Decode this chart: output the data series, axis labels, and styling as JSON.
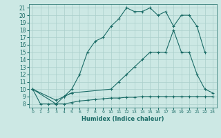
{
  "xlabel": "Humidex (Indice chaleur)",
  "bg_color": "#cce8e4",
  "grid_color": "#aacfcb",
  "line_color": "#1a6b66",
  "xlim": [
    -0.5,
    23.5
  ],
  "ylim": [
    7.5,
    21.5
  ],
  "xticks": [
    0,
    1,
    2,
    3,
    4,
    5,
    6,
    7,
    8,
    9,
    10,
    11,
    12,
    13,
    14,
    15,
    16,
    17,
    18,
    19,
    20,
    21,
    22,
    23
  ],
  "yticks": [
    8,
    9,
    10,
    11,
    12,
    13,
    14,
    15,
    16,
    17,
    18,
    19,
    20,
    21
  ],
  "line1_x": [
    0,
    1,
    2,
    3,
    4,
    5,
    6,
    7,
    8,
    9,
    10,
    11,
    12,
    13,
    14,
    15,
    16,
    17,
    18,
    19,
    20,
    21,
    22
  ],
  "line1_y": [
    10,
    8,
    8,
    8,
    9,
    10,
    12,
    15,
    16.5,
    17,
    18.5,
    19.5,
    21,
    20.5,
    20.5,
    21,
    20,
    20.5,
    18.5,
    20,
    20,
    18.5,
    15
  ],
  "line2_x": [
    0,
    3,
    4,
    5,
    10,
    11,
    12,
    13,
    14,
    15,
    16,
    17,
    18,
    19,
    20,
    21,
    22,
    23
  ],
  "line2_y": [
    10,
    8.5,
    9,
    9.5,
    10,
    11,
    12,
    13,
    14,
    15,
    15,
    15,
    18,
    15,
    15,
    12,
    10,
    9.5
  ],
  "line3_x": [
    0,
    3,
    4,
    5,
    6,
    7,
    8,
    9,
    10,
    11,
    12,
    13,
    14,
    15,
    16,
    17,
    18,
    19,
    20,
    21,
    22,
    23
  ],
  "line3_y": [
    10,
    8,
    8,
    8.2,
    8.4,
    8.5,
    8.6,
    8.7,
    8.8,
    8.8,
    8.9,
    8.9,
    9,
    9,
    9,
    9,
    9,
    9,
    9,
    9,
    9,
    9
  ]
}
